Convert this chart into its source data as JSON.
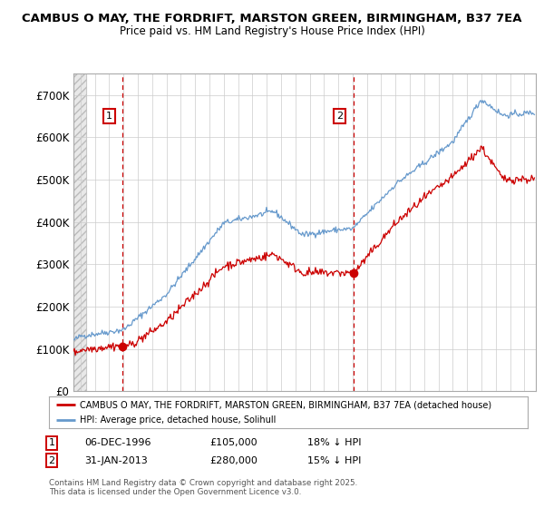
{
  "title1": "CAMBUS O MAY, THE FORDRIFT, MARSTON GREEN, BIRMINGHAM, B37 7EA",
  "title2": "Price paid vs. HM Land Registry's House Price Index (HPI)",
  "legend_line1": "CAMBUS O MAY, THE FORDRIFT, MARSTON GREEN, BIRMINGHAM, B37 7EA (detached house)",
  "legend_line2": "HPI: Average price, detached house, Solihull",
  "annotation1_label": "1",
  "annotation1_date": "06-DEC-1996",
  "annotation1_price": "£105,000",
  "annotation1_pct": "18% ↓ HPI",
  "annotation2_label": "2",
  "annotation2_date": "31-JAN-2013",
  "annotation2_price": "£280,000",
  "annotation2_pct": "15% ↓ HPI",
  "footer": "Contains HM Land Registry data © Crown copyright and database right 2025.\nThis data is licensed under the Open Government Licence v3.0.",
  "red_color": "#cc0000",
  "blue_color": "#6699cc",
  "background_color": "#ffffff",
  "ylim": [
    0,
    750000
  ],
  "yticks": [
    0,
    100000,
    200000,
    300000,
    400000,
    500000,
    600000,
    700000
  ],
  "ytick_labels": [
    "£0",
    "£100K",
    "£200K",
    "£300K",
    "£400K",
    "£500K",
    "£600K",
    "£700K"
  ],
  "xstart": 1994.0,
  "xend": 2025.8
}
